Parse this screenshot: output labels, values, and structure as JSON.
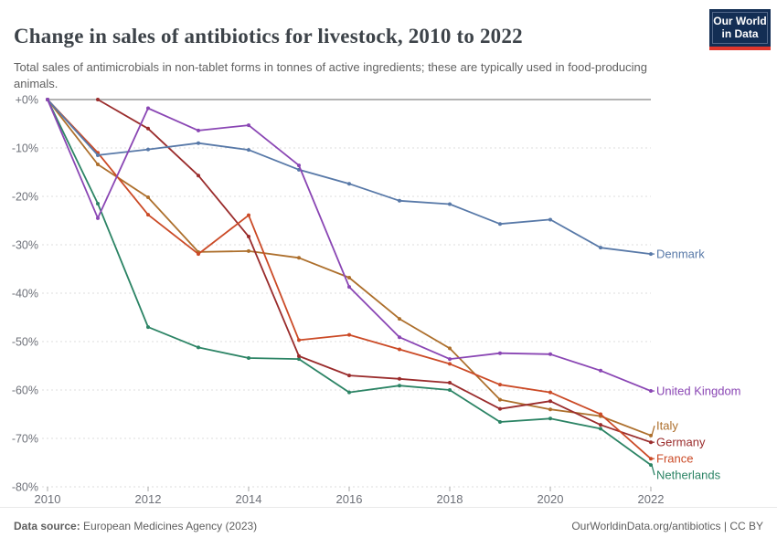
{
  "header": {
    "title": "Change in sales of antibiotics for livestock, 2010 to 2022",
    "subtitle": "Total sales of antimicrobials in non-tablet forms in tonnes of active ingredients; these are typically used in food-producing animals.",
    "logo": {
      "line1": "Our World",
      "line2": "in Data"
    }
  },
  "footer": {
    "source_label": "Data source:",
    "source_value": " European Medicines Agency (2023)",
    "link_text": "OurWorldinData.org/antibiotics | CC BY"
  },
  "colors": {
    "title_text": "#3D4349",
    "subtitle_text": "#616161",
    "axis_text": "#6E7179",
    "gridline": "#DEDEDE",
    "zero_line": "#A8A8A8",
    "tick_mark": "#ABABAB",
    "footer_text": "#5E5E5E",
    "logo_bg": "#132E54",
    "logo_bar": "#E0372D"
  },
  "chart_data": {
    "type": "line",
    "title": "Change in sales of antibiotics for livestock, 2010 to 2022",
    "xlabel": "",
    "ylabel": "",
    "x": [
      2010,
      2011,
      2012,
      2013,
      2014,
      2015,
      2016,
      2017,
      2018,
      2019,
      2020,
      2021,
      2022
    ],
    "xlim": [
      2010,
      2022
    ],
    "ylim": [
      -80,
      0
    ],
    "x_tick_labels": [
      2010,
      2012,
      2014,
      2016,
      2018,
      2020,
      2022
    ],
    "y_ticks": [
      {
        "value": 0,
        "label": "+0%"
      },
      {
        "value": -10,
        "label": "-10%"
      },
      {
        "value": -20,
        "label": "-20%"
      },
      {
        "value": -30,
        "label": "-30%"
      },
      {
        "value": -40,
        "label": "-40%"
      },
      {
        "value": -50,
        "label": "-50%"
      },
      {
        "value": -60,
        "label": "-60%"
      },
      {
        "value": -70,
        "label": "-70%"
      },
      {
        "value": -80,
        "label": "-80%"
      }
    ],
    "grid": "horizontal-dashed",
    "legend_position": "end-of-line-labels",
    "series": [
      {
        "name": "Denmark",
        "color": "#5879A8",
        "values": [
          0,
          -11.5,
          -10.3,
          -9.0,
          -10.4,
          -14.5,
          -17.4,
          -20.9,
          -21.6,
          -25.7,
          -24.8,
          -30.6,
          -31.9
        ]
      },
      {
        "name": "United Kingdom",
        "color": "#8A46B4",
        "values": [
          0,
          -24.5,
          -1.8,
          -6.4,
          -5.3,
          -13.6,
          -38.7,
          -49.1,
          -53.6,
          -52.4,
          -52.6,
          -56.0,
          -60.2
        ]
      },
      {
        "name": "Italy",
        "color": "#AD6F2C",
        "values": [
          0,
          -13.4,
          -20.2,
          -31.5,
          -31.3,
          -32.7,
          -36.8,
          -45.3,
          -51.4,
          -62.0,
          -64.0,
          -65.4,
          -69.4
        ]
      },
      {
        "name": "Germany",
        "color": "#9A2C2C",
        "values": [
          null,
          0,
          -6.0,
          -15.7,
          -28.3,
          -53.0,
          -57.0,
          -57.7,
          -58.5,
          -63.9,
          -62.3,
          -67.2,
          -70.8
        ]
      },
      {
        "name": "France",
        "color": "#CB4A26",
        "values": [
          0,
          -11.0,
          -23.8,
          -31.9,
          -23.9,
          -49.7,
          -48.6,
          -51.6,
          -54.6,
          -58.9,
          -60.5,
          -65.0,
          -74.2
        ]
      },
      {
        "name": "Netherlands",
        "color": "#2C8465",
        "values": [
          0,
          -21.5,
          -47.0,
          -51.2,
          -53.4,
          -53.6,
          -60.5,
          -59.1,
          -60.0,
          -66.6,
          -65.9,
          -68.0,
          -75.5
        ]
      }
    ]
  }
}
